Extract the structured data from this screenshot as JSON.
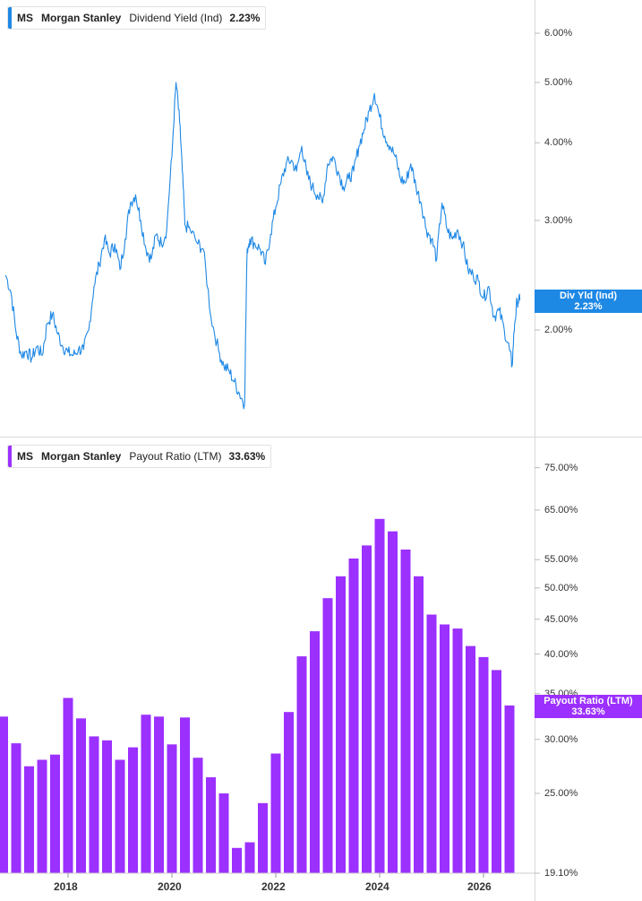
{
  "top_legend": {
    "ticker": "MS",
    "company": "Morgan Stanley",
    "series": "Dividend Yield (Ind)",
    "value": "2.23%",
    "color": "#1e88e5"
  },
  "bottom_legend": {
    "ticker": "MS",
    "company": "Morgan Stanley",
    "series": "Payout Ratio (LTM)",
    "value": "33.63%",
    "color": "#9b30ff"
  },
  "top_flag": {
    "label": "Div Yld (Ind)",
    "value": "2.23%"
  },
  "bottom_flag": {
    "label": "Payout Ratio (LTM)",
    "value": "33.63%"
  },
  "chart_data": [
    {
      "type": "line",
      "series_name": "Dividend Yield (Ind)",
      "scale": "log",
      "y_ticks": [
        "6.00%",
        "5.00%",
        "4.00%",
        "3.00%",
        "2.00%"
      ],
      "y_tick_values": [
        6,
        5,
        4,
        3,
        2
      ],
      "x_ticks": [
        "2018",
        "2020",
        "2022",
        "2024",
        "2026"
      ],
      "ylim": [
        1.45,
        6.6
      ],
      "x": [
        2016.8,
        2016.9,
        2017.0,
        2017.1,
        2017.2,
        2017.3,
        2017.4,
        2017.5,
        2017.6,
        2017.7,
        2017.8,
        2017.9,
        2018.0,
        2018.1,
        2018.2,
        2018.3,
        2018.4,
        2018.5,
        2018.6,
        2018.7,
        2018.8,
        2018.9,
        2019.0,
        2019.1,
        2019.2,
        2019.3,
        2019.4,
        2019.5,
        2019.6,
        2019.7,
        2019.8,
        2019.9,
        2020.0,
        2020.08,
        2020.15,
        2020.2,
        2020.25,
        2020.35,
        2020.5,
        2020.6,
        2020.75,
        2020.9,
        2021.0,
        2021.1,
        2021.2,
        2021.3,
        2021.4,
        2021.45,
        2021.5,
        2021.6,
        2021.7,
        2021.8,
        2021.9,
        2022.0,
        2022.1,
        2022.2,
        2022.3,
        2022.4,
        2022.5,
        2022.6,
        2022.7,
        2022.8,
        2022.9,
        2023.0,
        2023.1,
        2023.2,
        2023.3,
        2023.4,
        2023.5,
        2023.6,
        2023.7,
        2023.8,
        2023.9,
        2024.0,
        2024.1,
        2024.2,
        2024.3,
        2024.4,
        2024.5,
        2024.6,
        2024.7,
        2024.8,
        2024.9,
        2025.0,
        2025.1,
        2025.2,
        2025.3,
        2025.4,
        2025.5,
        2025.6,
        2025.7,
        2025.8,
        2025.9,
        2026.0,
        2026.1,
        2026.2,
        2026.3,
        2026.4,
        2026.5,
        2026.55,
        2026.6,
        2026.65,
        2026.7
      ],
      "y": [
        2.45,
        2.3,
        1.98,
        1.82,
        1.85,
        1.8,
        1.88,
        1.82,
        2.05,
        2.12,
        1.97,
        1.88,
        1.84,
        1.82,
        1.86,
        1.86,
        2.0,
        2.35,
        2.55,
        2.8,
        2.65,
        2.75,
        2.5,
        2.8,
        3.2,
        3.3,
        3.0,
        2.7,
        2.6,
        2.85,
        2.75,
        2.9,
        3.8,
        5.0,
        4.3,
        3.6,
        2.95,
        2.9,
        2.75,
        2.7,
        2.1,
        1.85,
        1.75,
        1.72,
        1.65,
        1.58,
        1.52,
        2.7,
        2.8,
        2.75,
        2.7,
        2.55,
        2.85,
        3.15,
        3.45,
        3.7,
        3.75,
        3.6,
        3.95,
        3.55,
        3.4,
        3.3,
        3.2,
        3.7,
        3.8,
        3.6,
        3.4,
        3.5,
        3.6,
        3.95,
        4.2,
        4.5,
        4.8,
        4.4,
        4.1,
        3.95,
        3.8,
        3.5,
        3.45,
        3.7,
        3.4,
        3.2,
        2.9,
        2.8,
        2.6,
        3.2,
        2.9,
        2.8,
        2.9,
        2.75,
        2.5,
        2.45,
        2.4,
        2.25,
        2.35,
        2.1,
        2.15,
        2.0,
        1.86,
        1.75,
        2.05,
        2.23,
        2.23
      ]
    },
    {
      "type": "bar",
      "series_name": "Payout Ratio (LTM)",
      "scale": "log",
      "y_ticks": [
        "75.00%",
        "65.00%",
        "55.00%",
        "50.00%",
        "45.00%",
        "40.00%",
        "35.00%",
        "30.00%",
        "25.00%",
        "19.10%"
      ],
      "y_tick_values": [
        75,
        65,
        55,
        50,
        45,
        40,
        35,
        30,
        25,
        19.1
      ],
      "x_ticks": [
        "2018",
        "2020",
        "2022",
        "2024",
        "2026"
      ],
      "ylim": [
        19.1,
        78
      ],
      "x": [
        2016.75,
        2017.0,
        2017.25,
        2017.5,
        2017.75,
        2018.0,
        2018.25,
        2018.5,
        2018.75,
        2019.0,
        2019.25,
        2019.5,
        2019.75,
        2020.0,
        2020.25,
        2020.5,
        2020.75,
        2021.0,
        2021.25,
        2021.5,
        2021.75,
        2022.0,
        2022.25,
        2022.5,
        2022.75,
        2023.0,
        2023.25,
        2023.5,
        2023.75,
        2024.0,
        2024.25,
        2024.5,
        2024.75,
        2025.0,
        2025.25,
        2025.5,
        2025.75,
        2026.0,
        2026.25,
        2026.5
      ],
      "values": [
        32.4,
        29.6,
        27.4,
        28.0,
        28.5,
        34.5,
        32.2,
        30.3,
        29.9,
        28.0,
        29.2,
        32.6,
        32.4,
        29.5,
        32.3,
        28.2,
        26.4,
        25.0,
        20.8,
        21.2,
        24.2,
        28.6,
        32.9,
        39.7,
        43.2,
        48.3,
        52.0,
        55.2,
        57.7,
        63.1,
        60.5,
        56.9,
        52.0,
        45.7,
        44.2,
        43.6,
        41.1,
        39.6,
        37.9,
        33.63
      ]
    }
  ]
}
